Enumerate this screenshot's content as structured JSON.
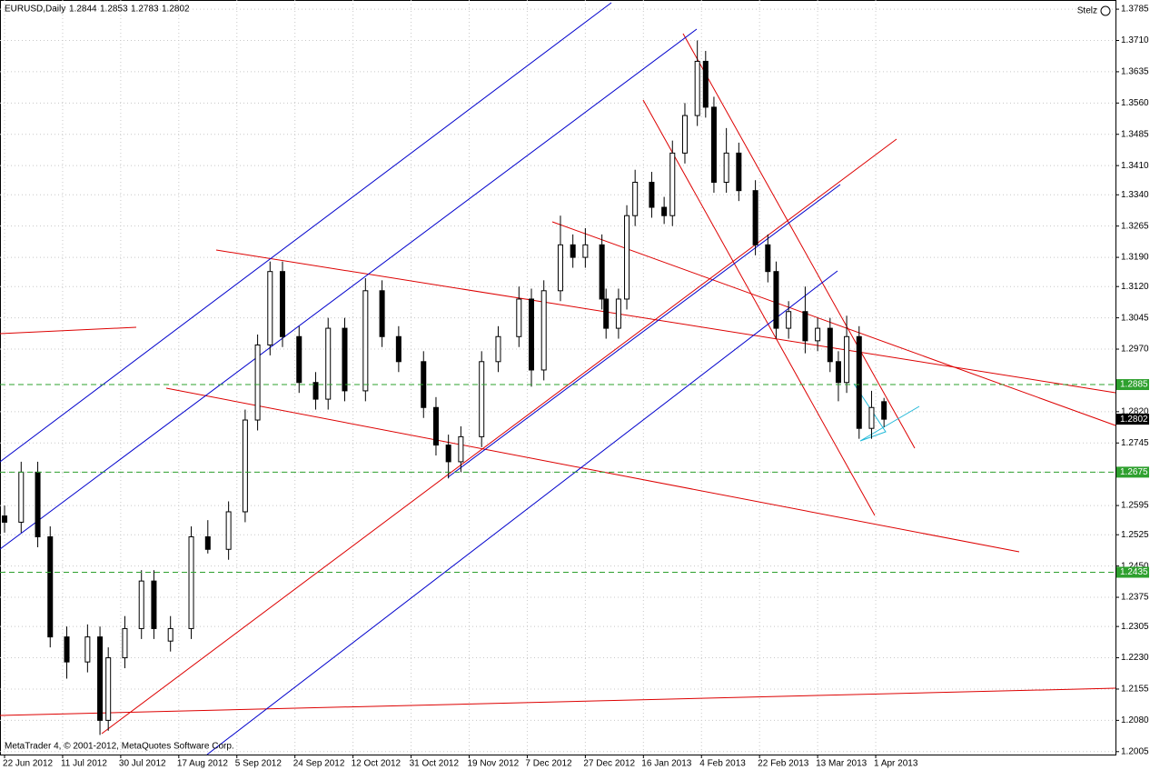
{
  "header": {
    "symbol": "EURUSD,Daily",
    "expert": "Stelz",
    "footer": "MetaTrader 4, © 2001-2012, MetaQuotes Software Corp."
  },
  "chart_data": {
    "type": "candlestick",
    "x": [
      0,
      4,
      8,
      11,
      15,
      20,
      23,
      25,
      29,
      33,
      36,
      40,
      45,
      49,
      54,
      58,
      61,
      64,
      67,
      71,
      75,
      78,
      82,
      87,
      91,
      95,
      101,
      104,
      107,
      110,
      115,
      119,
      124,
      127,
      130,
      134,
      137,
      140,
      144,
      145,
      148,
      150,
      152,
      156,
      159,
      161,
      164,
      167,
      169,
      171,
      174,
      177,
      181,
      184,
      186,
      189,
      193,
      196,
      199,
      201,
      203,
      206,
      209,
      212
    ],
    "open": [
      1.257,
      1.2555,
      1.2675,
      1.252,
      1.228,
      1.222,
      1.228,
      1.208,
      1.223,
      1.23,
      1.2414,
      1.227,
      1.23,
      1.252,
      1.249,
      1.258,
      1.28,
      1.298,
      1.3156,
      1.3,
      1.289,
      1.285,
      1.302,
      1.287,
      1.311,
      1.3,
      1.294,
      1.283,
      1.274,
      1.27,
      1.276,
      1.294,
      1.3,
      1.309,
      1.292,
      1.311,
      1.322,
      1.319,
      1.322,
      1.309,
      1.302,
      1.309,
      1.329,
      1.337,
      1.331,
      1.329,
      1.344,
      1.353,
      1.366,
      1.355,
      1.337,
      1.344,
      1.335,
      1.322,
      1.3156,
      1.302,
      1.306,
      1.299,
      1.302,
      1.294,
      1.289,
      1.3,
      1.278,
      1.2844
    ],
    "high": [
      1.2595,
      1.27,
      1.27,
      1.2545,
      1.2305,
      1.231,
      1.2305,
      1.2255,
      1.233,
      1.244,
      1.244,
      1.233,
      1.2545,
      1.256,
      1.2605,
      1.2825,
      1.3005,
      1.318,
      1.318,
      1.3025,
      1.2915,
      1.3045,
      1.3045,
      1.314,
      1.3135,
      1.3025,
      1.2965,
      1.2855,
      1.2765,
      1.2785,
      1.2965,
      1.3025,
      1.312,
      1.3115,
      1.3135,
      1.329,
      1.3245,
      1.326,
      1.3245,
      1.3115,
      1.3115,
      1.3315,
      1.34,
      1.3395,
      1.3335,
      1.347,
      1.356,
      1.371,
      1.3685,
      1.3575,
      1.35,
      1.3465,
      1.3375,
      1.3245,
      1.318,
      1.3085,
      1.312,
      1.3045,
      1.3045,
      1.2965,
      1.305,
      1.3025,
      1.287,
      1.2853
    ],
    "low": [
      1.253,
      1.253,
      1.2495,
      1.2255,
      1.218,
      1.2195,
      1.2045,
      1.2055,
      1.2205,
      1.2275,
      1.2275,
      1.2245,
      1.2275,
      1.248,
      1.2465,
      1.2555,
      1.2775,
      1.2955,
      1.2975,
      1.2865,
      1.2825,
      1.2825,
      1.2845,
      1.2845,
      1.2975,
      1.2915,
      1.2805,
      1.2715,
      1.266,
      1.2675,
      1.2735,
      1.2915,
      1.2975,
      1.288,
      1.2895,
      1.3085,
      1.3165,
      1.3165,
      1.3065,
      1.2995,
      1.2995,
      1.3065,
      1.3265,
      1.3285,
      1.327,
      1.3265,
      1.3415,
      1.3505,
      1.3525,
      1.3345,
      1.3345,
      1.3325,
      1.3195,
      1.313,
      1.2995,
      1.2995,
      1.296,
      1.2965,
      1.2915,
      1.2845,
      1.2865,
      1.2755,
      1.2755,
      1.2783
    ],
    "close": [
      1.2555,
      1.2675,
      1.252,
      1.228,
      1.222,
      1.228,
      1.208,
      1.223,
      1.23,
      1.2414,
      1.23,
      1.23,
      1.252,
      1.249,
      1.258,
      1.28,
      1.298,
      1.3156,
      1.3,
      1.289,
      1.285,
      1.302,
      1.287,
      1.311,
      1.3,
      1.294,
      1.283,
      1.274,
      1.27,
      1.276,
      1.294,
      1.3,
      1.309,
      1.292,
      1.311,
      1.322,
      1.319,
      1.322,
      1.309,
      1.302,
      1.309,
      1.329,
      1.337,
      1.331,
      1.329,
      1.344,
      1.353,
      1.366,
      1.355,
      1.337,
      1.344,
      1.335,
      1.322,
      1.3156,
      1.302,
      1.306,
      1.299,
      1.302,
      1.294,
      1.289,
      1.3,
      1.278,
      1.283,
      1.2802
    ],
    "xlim": [
      -1.1,
      267.8
    ],
    "xticks": [
      {
        "value": 0,
        "label": "22 Jun 2012"
      },
      {
        "value": 14,
        "label": "11 Jul 2012"
      },
      {
        "value": 28,
        "label": "30 Jul 2012"
      },
      {
        "value": 42,
        "label": "17 Aug 2012"
      },
      {
        "value": 56,
        "label": "5 Sep 2012"
      },
      {
        "value": 70,
        "label": "24 Sep 2012"
      },
      {
        "value": 84,
        "label": "12 Oct 2012"
      },
      {
        "value": 98,
        "label": "31 Oct 2012"
      },
      {
        "value": 112,
        "label": "19 Nov 2012"
      },
      {
        "value": 126,
        "label": "7 Dec 2012"
      },
      {
        "value": 140,
        "label": "27 Dec 2012"
      },
      {
        "value": 154,
        "label": "16 Jan 2013"
      },
      {
        "value": 168,
        "label": "4 Feb 2013"
      },
      {
        "value": 182,
        "label": "22 Feb 2013"
      },
      {
        "value": 196,
        "label": "13 Mar 2013"
      },
      {
        "value": 210,
        "label": "1 Apr 2013"
      }
    ],
    "ylim": [
      1.1998,
      1.3807
    ],
    "yticks": [
      1.2005,
      {
        "value": 1.208,
        "label": "1.2080"
      },
      1.2155,
      {
        "value": 1.223,
        "label": "1.2230"
      },
      1.2305,
      1.2375,
      {
        "value": 1.245,
        "label": "1.2450"
      },
      1.2525,
      1.2595,
      1.2675,
      1.2745,
      {
        "value": 1.282,
        "label": "1.2820"
      },
      {
        "value": 1.297,
        "label": "1.2970"
      },
      1.3045,
      {
        "value": 1.312,
        "label": "1.3120"
      },
      {
        "value": 1.319,
        "label": "1.3190"
      },
      1.3265,
      {
        "value": 1.334,
        "label": "1.3340"
      },
      {
        "value": 1.341,
        "label": "1.3410"
      },
      1.3485,
      {
        "value": 1.356,
        "label": "1.3560"
      },
      1.3635,
      {
        "value": 1.371,
        "label": "1.3710"
      },
      1.3785
    ],
    "hlines": [
      1.2885,
      1.2675,
      1.2435
    ],
    "hline_color": "#2ea02e",
    "bull_color": "#ffffff",
    "bear_color": "#000000",
    "grid": true
  }
}
